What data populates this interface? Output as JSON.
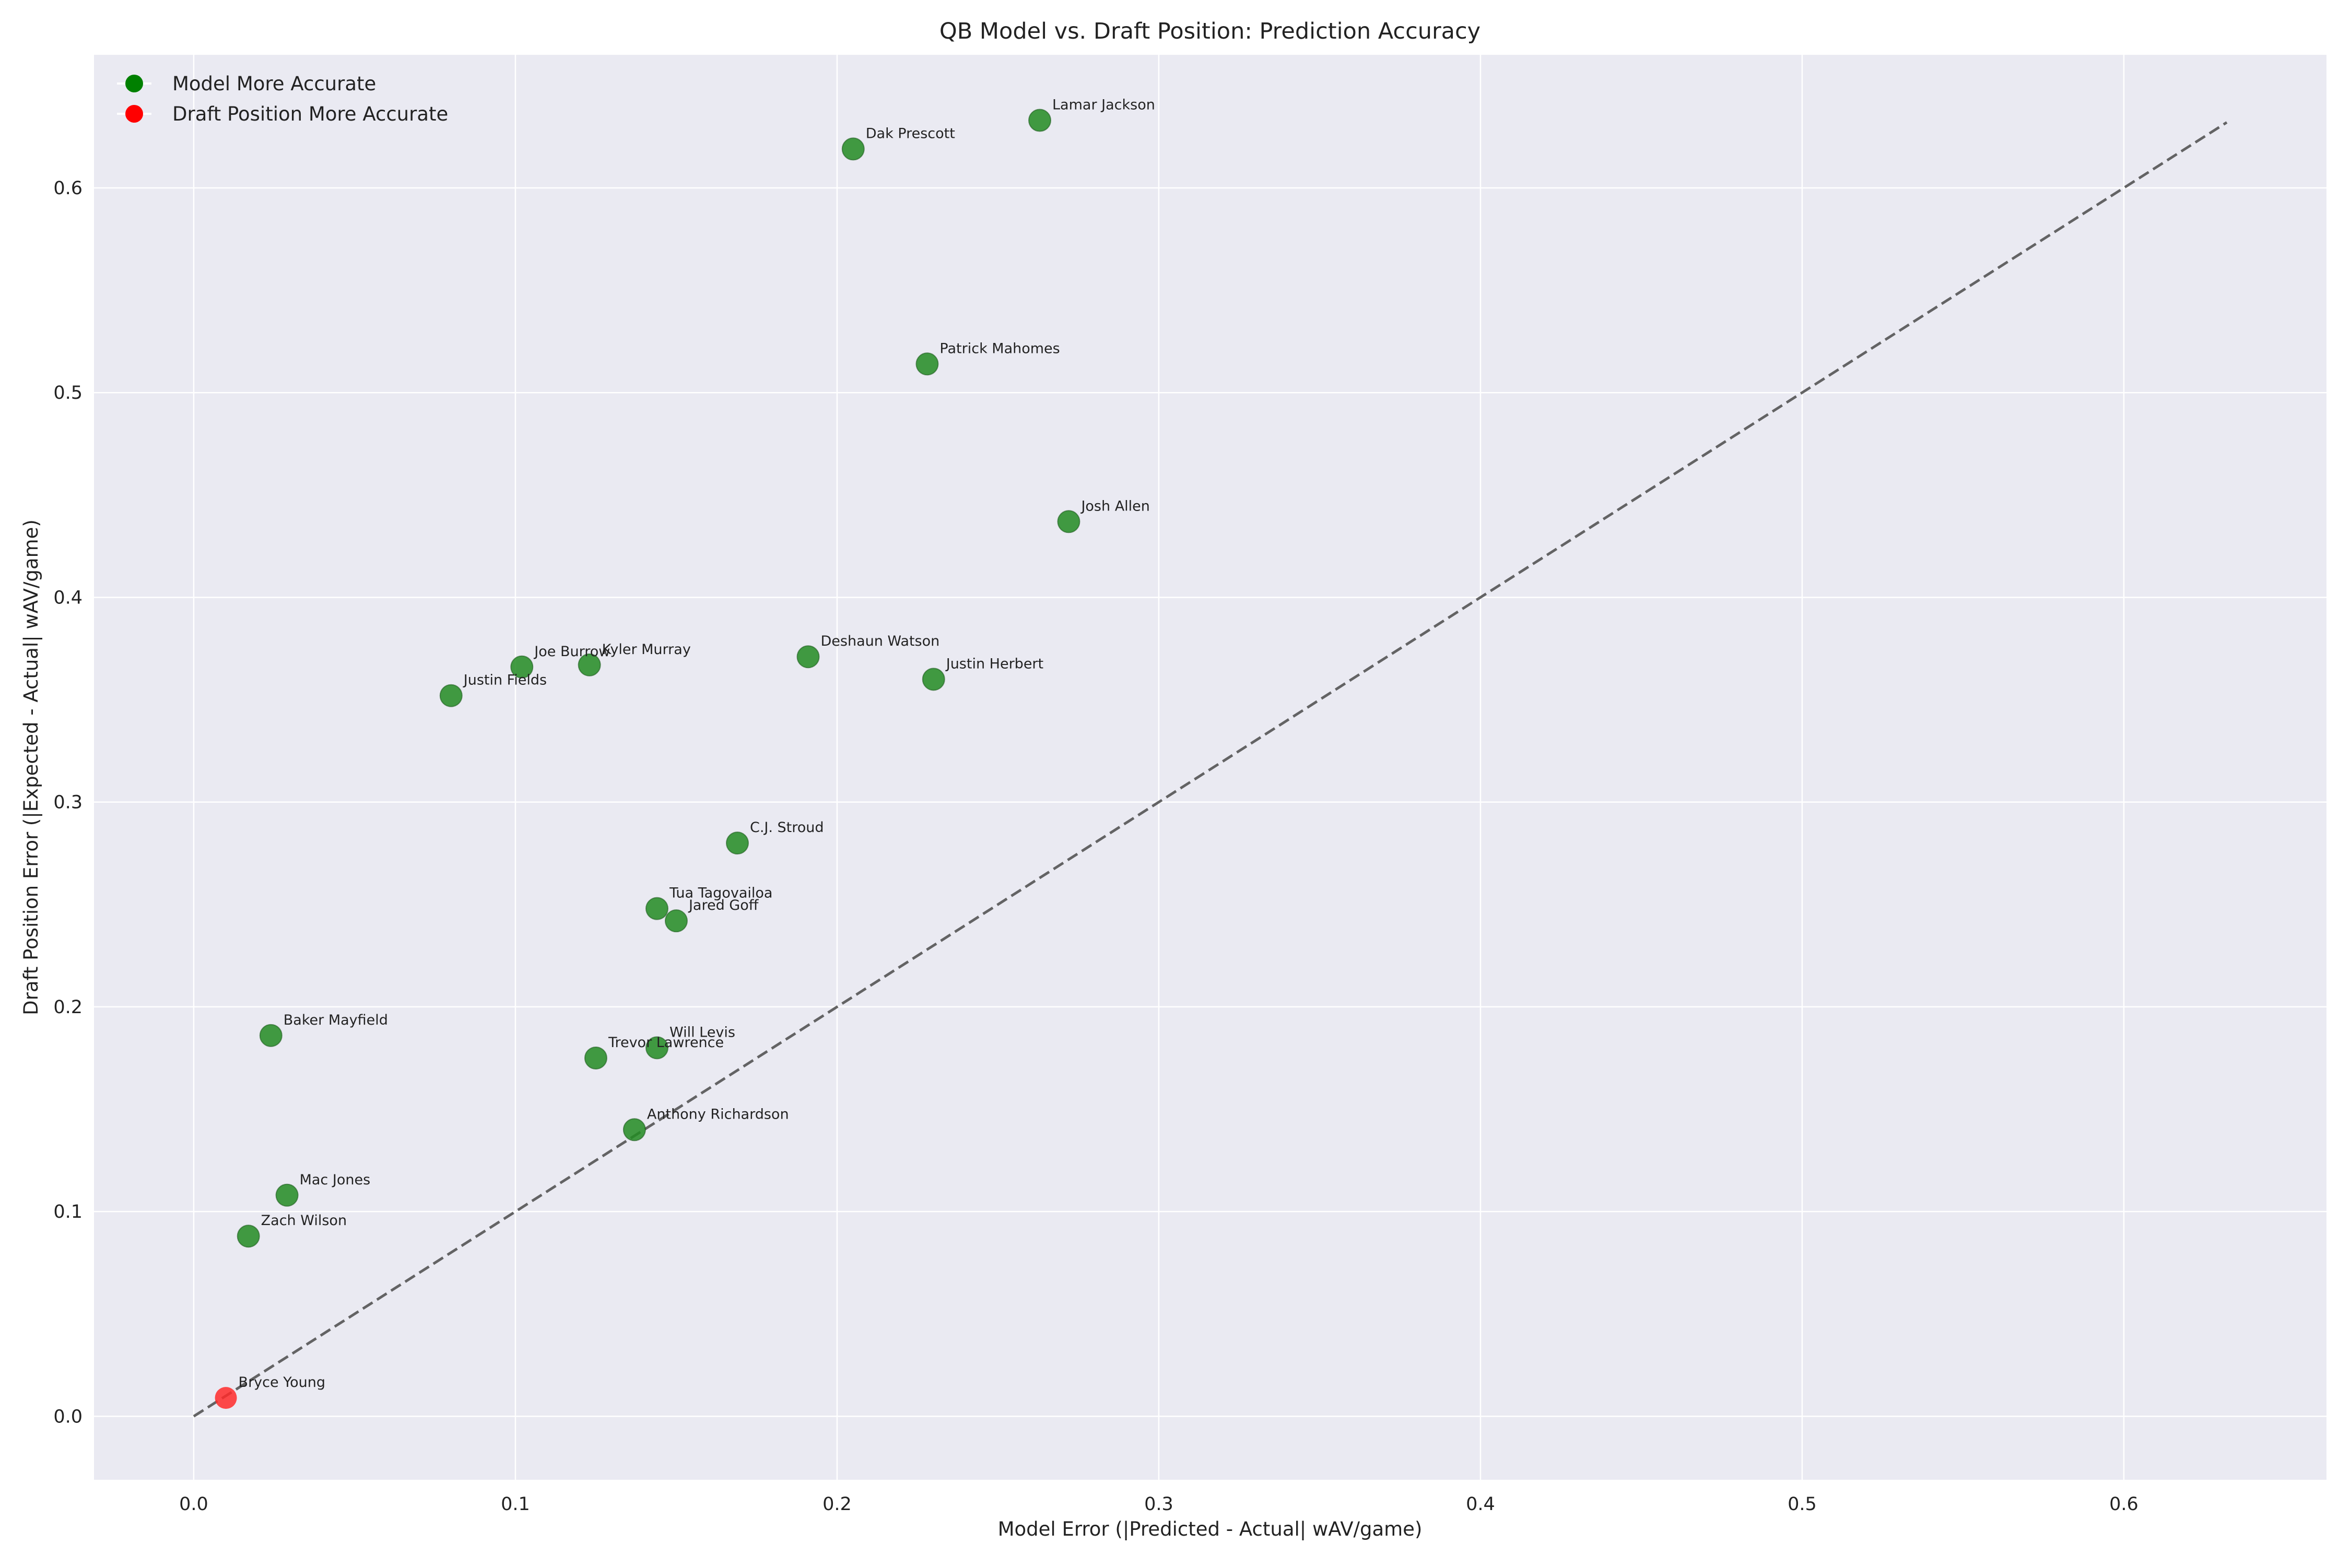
{
  "chart_data": {
    "type": "scatter",
    "title": "QB Model vs. Draft Position: Prediction Accuracy",
    "xlabel": "Model Error (|Predicted - Actual| wAV/game)",
    "ylabel": "Draft Position Error (|Expected - Actual| wAV/game)",
    "xlim": [
      -0.031,
      0.663
    ],
    "ylim": [
      -0.031,
      0.665
    ],
    "x_ticks": [
      0.0,
      0.1,
      0.2,
      0.3,
      0.4,
      0.5,
      0.6
    ],
    "x_tick_labels": [
      "0.0",
      "0.1",
      "0.2",
      "0.3",
      "0.4",
      "0.5",
      "0.6"
    ],
    "y_ticks": [
      0.0,
      0.1,
      0.2,
      0.3,
      0.4,
      0.5,
      0.6
    ],
    "y_tick_labels": [
      "0.0",
      "0.1",
      "0.2",
      "0.3",
      "0.4",
      "0.5",
      "0.6"
    ],
    "grid": true,
    "legend_position": "top-left",
    "legend": [
      {
        "label": "Model More Accurate",
        "color": "#008000"
      },
      {
        "label": "Draft Position More Accurate",
        "color": "#ff0000"
      }
    ],
    "reference_line": {
      "style": "dashed",
      "color": "#555555",
      "from": [
        0.0,
        0.0
      ],
      "to": [
        0.632,
        0.632
      ]
    },
    "colors": {
      "model_better": "#228b22",
      "draft_better": "#ff2a2a"
    },
    "points": [
      {
        "label": "Lamar Jackson",
        "x": 0.263,
        "y": 0.633,
        "group": "model_better"
      },
      {
        "label": "Dak Prescott",
        "x": 0.205,
        "y": 0.619,
        "group": "model_better"
      },
      {
        "label": "Patrick Mahomes",
        "x": 0.228,
        "y": 0.514,
        "group": "model_better"
      },
      {
        "label": "Josh Allen",
        "x": 0.272,
        "y": 0.437,
        "group": "model_better"
      },
      {
        "label": "Deshaun Watson",
        "x": 0.191,
        "y": 0.371,
        "group": "model_better"
      },
      {
        "label": "Justin Herbert",
        "x": 0.23,
        "y": 0.36,
        "group": "model_better"
      },
      {
        "label": "Joe Burrow",
        "x": 0.102,
        "y": 0.366,
        "group": "model_better"
      },
      {
        "label": "Kyler Murray",
        "x": 0.123,
        "y": 0.367,
        "group": "model_better"
      },
      {
        "label": "Justin Fields",
        "x": 0.08,
        "y": 0.352,
        "group": "model_better"
      },
      {
        "label": "C.J. Stroud",
        "x": 0.169,
        "y": 0.28,
        "group": "model_better"
      },
      {
        "label": "Tua Tagovailoa",
        "x": 0.144,
        "y": 0.248,
        "group": "model_better"
      },
      {
        "label": "Jared Goff",
        "x": 0.15,
        "y": 0.242,
        "group": "model_better"
      },
      {
        "label": "Baker Mayfield",
        "x": 0.024,
        "y": 0.186,
        "group": "model_better"
      },
      {
        "label": "Trevor Lawrence",
        "x": 0.125,
        "y": 0.175,
        "group": "model_better"
      },
      {
        "label": "Will Levis",
        "x": 0.144,
        "y": 0.18,
        "group": "model_better"
      },
      {
        "label": "Anthony Richardson",
        "x": 0.137,
        "y": 0.14,
        "group": "model_better"
      },
      {
        "label": "Mac Jones",
        "x": 0.029,
        "y": 0.108,
        "group": "model_better"
      },
      {
        "label": "Zach Wilson",
        "x": 0.017,
        "y": 0.088,
        "group": "model_better"
      },
      {
        "label": "Bryce Young",
        "x": 0.01,
        "y": 0.009,
        "group": "draft_better"
      }
    ]
  }
}
